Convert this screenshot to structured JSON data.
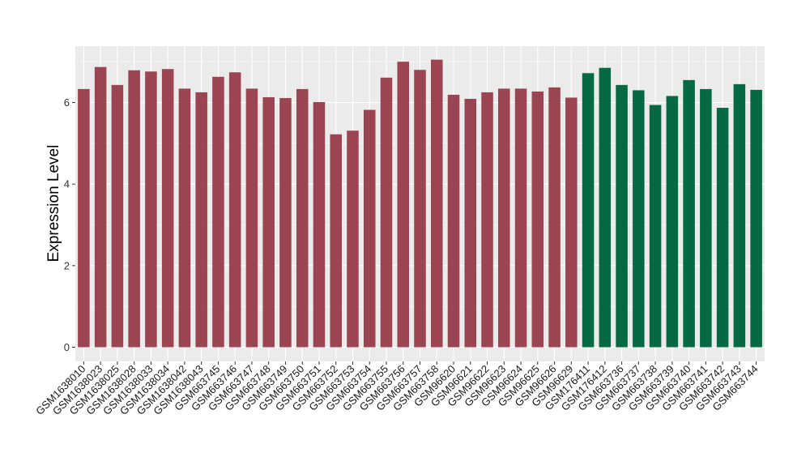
{
  "chart_data": {
    "type": "bar",
    "title": "",
    "xlabel": "",
    "ylabel": "Expression Level",
    "ylim": [
      0,
      7.3
    ],
    "yticks": [
      0,
      2,
      4,
      6
    ],
    "grid": true,
    "legend": "none",
    "colors": {
      "group1": "#9b4452",
      "group2": "#056944",
      "panel": "#ebebeb"
    },
    "categories": [
      "GSM1638010",
      "GSM1638023",
      "GSM1638025",
      "GSM1638028",
      "GSM1638033",
      "GSM1638034",
      "GSM1638042",
      "GSM1638043",
      "GSM663745",
      "GSM663746",
      "GSM663747",
      "GSM663748",
      "GSM663749",
      "GSM663750",
      "GSM663751",
      "GSM663752",
      "GSM663753",
      "GSM663754",
      "GSM663755",
      "GSM663756",
      "GSM663757",
      "GSM663758",
      "GSM96620",
      "GSM96621",
      "GSM96622",
      "GSM96623",
      "GSM96624",
      "GSM96625",
      "GSM96626",
      "GSM96629",
      "GSM176411",
      "GSM176412",
      "GSM663736",
      "GSM663737",
      "GSM663738",
      "GSM663739",
      "GSM663740",
      "GSM663741",
      "GSM663742",
      "GSM663743",
      "GSM663744"
    ],
    "values": [
      6.33,
      6.87,
      6.43,
      6.79,
      6.76,
      6.82,
      6.34,
      6.25,
      6.63,
      6.74,
      6.34,
      6.13,
      6.11,
      6.33,
      6.01,
      5.22,
      5.31,
      5.82,
      6.61,
      7.0,
      6.8,
      7.05,
      6.19,
      6.09,
      6.25,
      6.34,
      6.34,
      6.27,
      6.37,
      6.12,
      6.72,
      6.85,
      6.43,
      6.3,
      5.94,
      6.16,
      6.55,
      6.33,
      5.87,
      6.45,
      6.31
    ],
    "groups": [
      1,
      1,
      1,
      1,
      1,
      1,
      1,
      1,
      1,
      1,
      1,
      1,
      1,
      1,
      1,
      1,
      1,
      1,
      1,
      1,
      1,
      1,
      1,
      1,
      1,
      1,
      1,
      1,
      1,
      1,
      2,
      2,
      2,
      2,
      2,
      2,
      2,
      2,
      2,
      2,
      2
    ]
  }
}
